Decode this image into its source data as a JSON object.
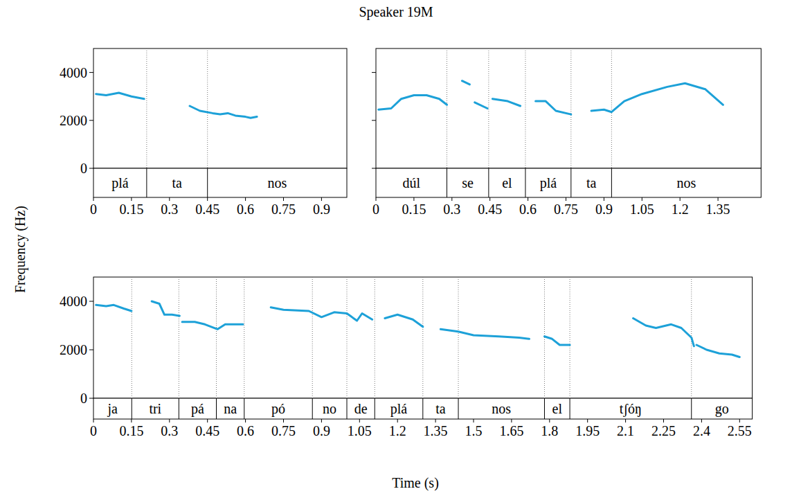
{
  "title": "Speaker 19M",
  "x_label": "Time (s)",
  "y_label": "Frequency (Hz)",
  "chart_data": [
    {
      "type": "line",
      "tick_labels": true,
      "xlim": [
        0,
        1.0
      ],
      "xticks": [
        0,
        0.15,
        0.3,
        0.45,
        0.6,
        0.75,
        0.9
      ],
      "ylim": [
        0,
        5000
      ],
      "yticks": [
        0,
        2000,
        4000
      ],
      "segments": [
        {
          "label": "plá",
          "start": 0,
          "end": 0.21
        },
        {
          "label": "ta",
          "start": 0.21,
          "end": 0.45
        },
        {
          "label": "nos",
          "start": 0.45,
          "end": 1.0
        }
      ],
      "series": [
        {
          "color": "#1da1d8",
          "x": [
            0.01,
            0.05,
            0.1,
            0.15,
            0.2,
            null,
            0.38,
            0.42,
            0.47,
            0.5,
            0.53,
            0.56,
            0.6,
            0.62,
            0.645
          ],
          "values": [
            3100,
            3050,
            3150,
            3000,
            2900,
            null,
            2600,
            2400,
            2300,
            2250,
            2300,
            2200,
            2150,
            2100,
            2150
          ]
        }
      ]
    },
    {
      "type": "line",
      "tick_labels": "x",
      "xlim": [
        0,
        1.52
      ],
      "xticks": [
        0,
        0.15,
        0.3,
        0.45,
        0.6,
        0.75,
        0.9,
        1.05,
        1.2,
        1.35
      ],
      "ylim": [
        0,
        5000
      ],
      "yticks": [
        0,
        2000,
        4000
      ],
      "segments": [
        {
          "label": "dúl",
          "start": 0,
          "end": 0.28
        },
        {
          "label": "se",
          "start": 0.28,
          "end": 0.445
        },
        {
          "label": "el",
          "start": 0.445,
          "end": 0.59
        },
        {
          "label": "plá",
          "start": 0.59,
          "end": 0.77
        },
        {
          "label": "ta",
          "start": 0.77,
          "end": 0.93
        },
        {
          "label": "nos",
          "start": 0.93,
          "end": 1.52
        }
      ],
      "series": [
        {
          "color": "#1da1d8",
          "x": [
            0.01,
            0.06,
            0.1,
            0.15,
            0.2,
            0.25,
            0.28,
            null,
            0.34,
            0.37,
            null,
            0.39,
            0.44,
            null,
            0.46,
            0.52,
            0.57,
            null,
            0.63,
            0.67,
            0.71,
            0.77,
            null,
            0.85,
            0.9,
            0.93,
            0.98,
            1.05,
            1.15,
            1.22,
            1.3,
            1.37
          ],
          "values": [
            2450,
            2500,
            2900,
            3050,
            3050,
            2900,
            2650,
            null,
            3650,
            3500,
            null,
            2750,
            2500,
            null,
            2900,
            2800,
            2600,
            null,
            2800,
            2800,
            2400,
            2250,
            null,
            2400,
            2450,
            2350,
            2800,
            3100,
            3400,
            3550,
            3300,
            2650
          ]
        }
      ]
    },
    {
      "type": "line",
      "tick_labels": true,
      "xlim": [
        0,
        2.6
      ],
      "xticks": [
        0,
        0.15,
        0.3,
        0.45,
        0.6,
        0.75,
        0.9,
        1.05,
        1.2,
        1.35,
        1.5,
        1.65,
        1.8,
        1.95,
        2.1,
        2.25,
        2.4,
        2.55
      ],
      "ylim": [
        0,
        5000
      ],
      "yticks": [
        0,
        2000,
        4000
      ],
      "segments": [
        {
          "label": "ja",
          "start": 0,
          "end": 0.151
        },
        {
          "label": "tri",
          "start": 0.151,
          "end": 0.337
        },
        {
          "label": "pá",
          "start": 0.337,
          "end": 0.485
        },
        {
          "label": "na",
          "start": 0.485,
          "end": 0.595
        },
        {
          "label": "pó",
          "start": 0.595,
          "end": 0.864
        },
        {
          "label": "no",
          "start": 0.864,
          "end": 1.0
        },
        {
          "label": "de",
          "start": 1.0,
          "end": 1.11
        },
        {
          "label": "plá",
          "start": 1.11,
          "end": 1.3
        },
        {
          "label": "ta",
          "start": 1.3,
          "end": 1.44
        },
        {
          "label": "nos",
          "start": 1.44,
          "end": 1.78
        },
        {
          "label": "el",
          "start": 1.78,
          "end": 1.88
        },
        {
          "label": "tʃóŋ",
          "start": 1.88,
          "end": 2.36
        },
        {
          "label": "go",
          "start": 2.36,
          "end": 2.6
        }
      ],
      "series": [
        {
          "color": "#1da1d8",
          "x": [
            0.01,
            0.05,
            0.08,
            0.12,
            0.15,
            null,
            0.23,
            0.26,
            0.28,
            0.31,
            0.34,
            null,
            0.35,
            0.4,
            0.44,
            0.49,
            0.52,
            0.59,
            null,
            0.7,
            0.75,
            0.85,
            0.9,
            0.95,
            1.0,
            1.04,
            1.06,
            1.1,
            null,
            1.15,
            1.2,
            1.26,
            1.3,
            null,
            1.37,
            1.44,
            1.5,
            1.6,
            1.68,
            1.72,
            null,
            1.78,
            1.81,
            1.84,
            1.88,
            null,
            2.13,
            2.18,
            2.22,
            2.28,
            2.32,
            2.36,
            2.37,
            null,
            2.38,
            2.42,
            2.47,
            2.52,
            2.55
          ],
          "values": [
            3850,
            3800,
            3850,
            3700,
            3600,
            null,
            4000,
            3900,
            3450,
            3450,
            3400,
            null,
            3150,
            3150,
            3050,
            2850,
            3050,
            3050,
            null,
            3750,
            3650,
            3600,
            3350,
            3550,
            3500,
            3200,
            3500,
            3250,
            null,
            3300,
            3450,
            3250,
            2950,
            null,
            2850,
            2750,
            2600,
            2550,
            2500,
            2450,
            null,
            2550,
            2450,
            2200,
            2200,
            null,
            3300,
            3000,
            2900,
            3050,
            2900,
            2500,
            2150,
            null,
            2200,
            2000,
            1850,
            1800,
            1700
          ]
        }
      ]
    }
  ]
}
